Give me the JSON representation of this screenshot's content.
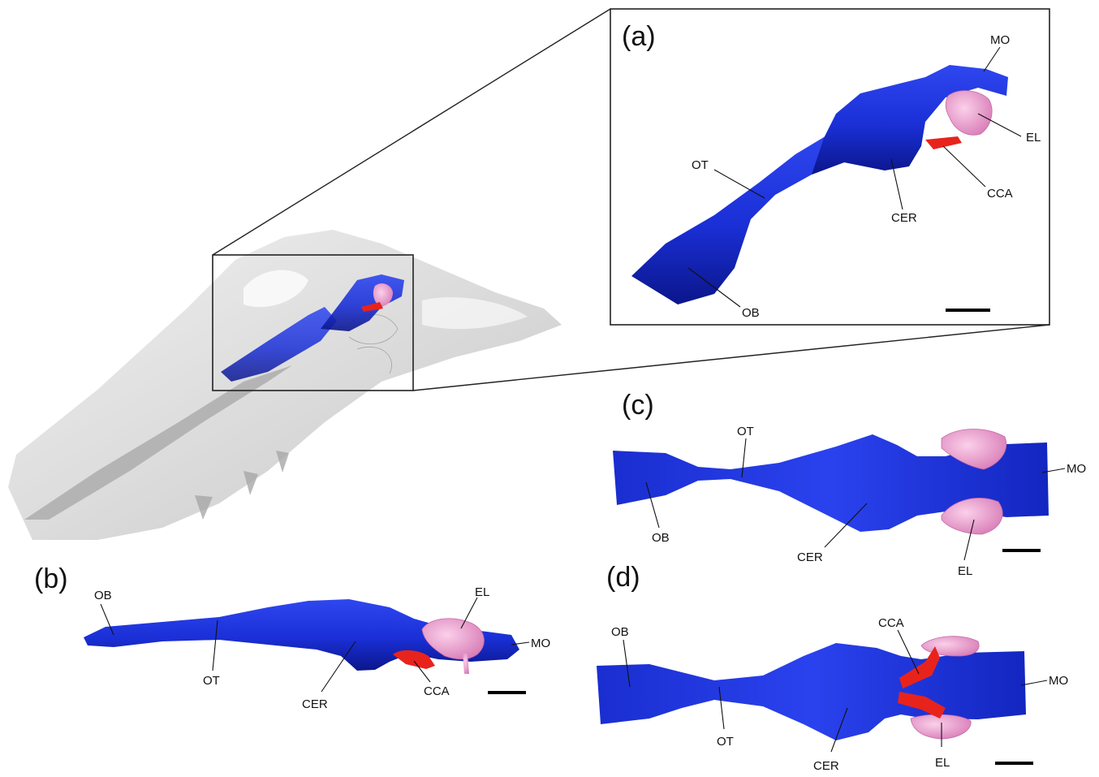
{
  "panels": {
    "a": {
      "letter": "(a)",
      "labels": {
        "mo": "MO",
        "el": "EL",
        "ot": "OT",
        "cca": "CCA",
        "cer": "CER",
        "ob": "OB"
      }
    },
    "b": {
      "letter": "(b)",
      "labels": {
        "ob": "OB",
        "el": "EL",
        "mo": "MO",
        "ot": "OT",
        "cer": "CER",
        "cca": "CCA"
      }
    },
    "c": {
      "letter": "(c)",
      "labels": {
        "ot": "OT",
        "mo": "MO",
        "ob": "OB",
        "cer": "CER",
        "el": "EL"
      }
    },
    "d": {
      "letter": "(d)",
      "labels": {
        "cca": "CCA",
        "ob": "OB",
        "mo": "MO",
        "ot": "OT",
        "cer": "CER",
        "el": "EL"
      }
    }
  },
  "colors": {
    "brain": "#1a2fd6",
    "brain_dark": "#0d1a9a",
    "endolymph": "#f0a0d2",
    "endolymph_dark": "#c46aa8",
    "carotid": "#e8231c",
    "skull": "#c8c8c8"
  }
}
